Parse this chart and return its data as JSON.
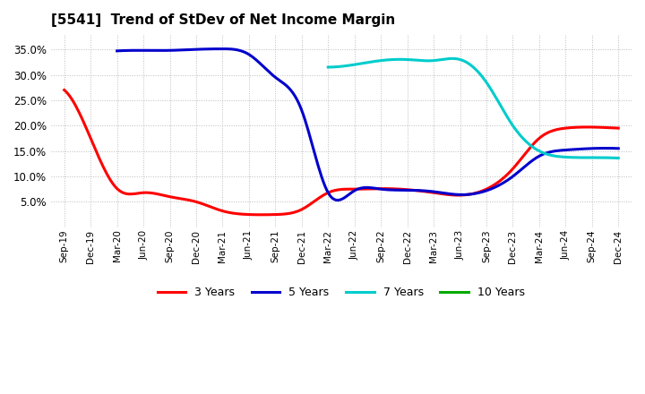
{
  "title": "[5541]  Trend of StDev of Net Income Margin",
  "background_color": "#ffffff",
  "plot_background": "#ffffff",
  "grid_color": "#aaaaaa",
  "ylim": [
    0.0,
    0.38
  ],
  "yticks": [
    0.05,
    0.1,
    0.15,
    0.2,
    0.25,
    0.3,
    0.35
  ],
  "xtick_labels": [
    "Sep-19",
    "Dec-19",
    "Mar-20",
    "Jun-20",
    "Sep-20",
    "Dec-20",
    "Mar-21",
    "Jun-21",
    "Sep-21",
    "Dec-21",
    "Mar-22",
    "Jun-22",
    "Sep-22",
    "Dec-22",
    "Mar-23",
    "Jun-23",
    "Sep-23",
    "Dec-23",
    "Mar-24",
    "Jun-24",
    "Sep-24",
    "Dec-24"
  ],
  "series": [
    {
      "name": "3 Years",
      "color": "#ff0000",
      "indices": [
        0,
        1,
        2,
        3,
        4,
        5,
        6,
        7,
        8,
        9,
        10,
        11,
        12,
        13,
        14,
        15,
        16,
        17,
        18,
        19,
        20,
        21
      ],
      "values": [
        0.27,
        0.175,
        0.076,
        0.068,
        0.06,
        0.05,
        0.032,
        0.025,
        0.025,
        0.035,
        0.068,
        0.075,
        0.076,
        0.074,
        0.068,
        0.063,
        0.075,
        0.115,
        0.175,
        0.195,
        0.197,
        0.195
      ]
    },
    {
      "name": "5 Years",
      "color": "#0000cc",
      "indices": [
        2,
        3,
        4,
        5,
        6,
        7,
        8,
        9,
        10,
        11,
        12,
        13,
        14,
        15,
        16,
        17,
        18,
        19,
        20,
        21
      ],
      "values": [
        0.347,
        0.348,
        0.348,
        0.35,
        0.351,
        0.34,
        0.295,
        0.23,
        0.068,
        0.072,
        0.075,
        0.073,
        0.07,
        0.064,
        0.072,
        0.1,
        0.14,
        0.152,
        0.155,
        0.155
      ]
    },
    {
      "name": "7 Years",
      "color": "#00cccc",
      "indices": [
        10,
        11,
        12,
        13,
        14,
        15,
        16,
        17,
        18,
        19,
        20,
        21
      ],
      "values": [
        0.315,
        0.32,
        0.328,
        0.33,
        0.328,
        0.33,
        0.285,
        0.2,
        0.15,
        0.138,
        0.137,
        0.136
      ]
    },
    {
      "name": "10 Years",
      "color": "#00aa00",
      "indices": [],
      "values": []
    }
  ]
}
